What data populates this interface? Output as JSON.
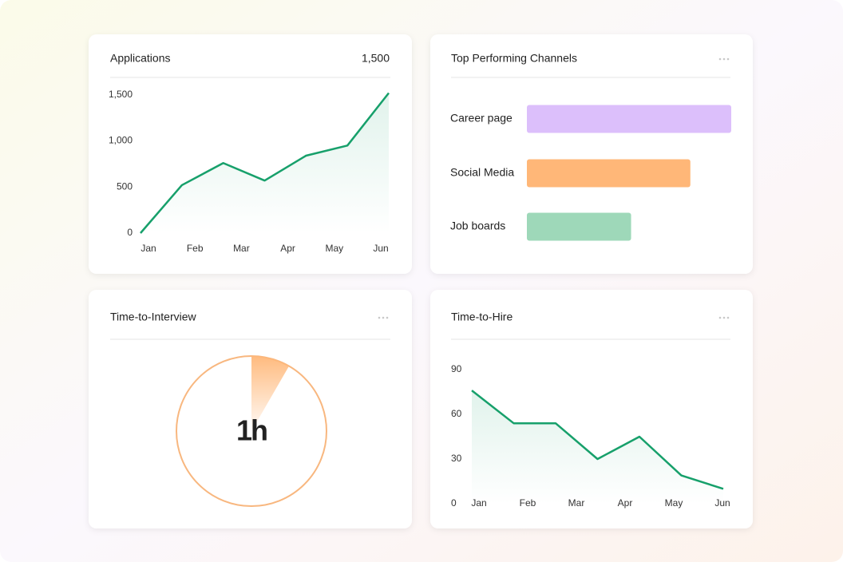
{
  "chart_data": [
    {
      "type": "line",
      "title": "Applications",
      "headline": "1,500",
      "categories": [
        "Jan",
        "Feb",
        "Mar",
        "Apr",
        "May",
        "Jun",
        null
      ],
      "values": [
        0,
        520,
        760,
        570,
        840,
        950,
        1520
      ],
      "color": "#17a06b",
      "ylim": [
        0,
        1550
      ],
      "yticks": [
        0,
        500,
        {
          "value": 1000,
          "label": "1,000"
        },
        {
          "value": 1500,
          "label": "1,500"
        }
      ]
    },
    {
      "type": "hbar",
      "title": "Top Performing Channels",
      "categories": [
        "Career page",
        "Social Media",
        "Job boards"
      ],
      "values": [
        100,
        80,
        51
      ],
      "colors": [
        "#dcbffb",
        "#ffb778",
        "#9ed8b9"
      ],
      "xlim": [
        0,
        100
      ]
    },
    {
      "type": "gauge",
      "title": "Time-to-Interview",
      "value": 1,
      "value_label": "1h",
      "max": 12,
      "color": "#f8b77f"
    },
    {
      "type": "line",
      "title": "Time-to-Hire",
      "categories": [
        "Jan",
        "Feb",
        "Mar",
        "Apr",
        "May",
        "Jun",
        null
      ],
      "values": [
        76,
        54,
        54,
        30,
        45,
        19,
        10
      ],
      "color": "#17a06b",
      "ylim": [
        0,
        90
      ],
      "yticks": [
        0,
        30,
        60,
        90
      ]
    }
  ]
}
